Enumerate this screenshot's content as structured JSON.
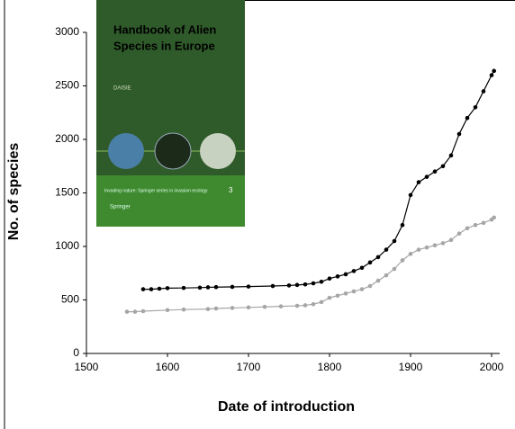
{
  "chart_data": {
    "type": "scatter",
    "xlabel": "Date of introduction",
    "ylabel": "No. of species",
    "xlim": [
      1500,
      2010
    ],
    "ylim": [
      0,
      3000
    ],
    "xticks": [
      1500,
      1600,
      1700,
      1800,
      1900,
      2000
    ],
    "yticks": [
      0,
      500,
      1000,
      1500,
      2000,
      2500,
      3000
    ],
    "grid": false,
    "series": [
      {
        "color": "#000000",
        "x": [
          1570,
          1580,
          1590,
          1600,
          1620,
          1640,
          1650,
          1660,
          1680,
          1700,
          1730,
          1750,
          1760,
          1770,
          1780,
          1790,
          1800,
          1810,
          1820,
          1830,
          1840,
          1850,
          1860,
          1870,
          1880,
          1890,
          1900,
          1910,
          1920,
          1930,
          1940,
          1950,
          1960,
          1970,
          1980,
          1990,
          2000,
          2003
        ],
        "values": [
          600,
          600,
          605,
          610,
          612,
          615,
          618,
          620,
          622,
          625,
          630,
          635,
          640,
          645,
          655,
          670,
          700,
          720,
          740,
          770,
          800,
          850,
          900,
          970,
          1050,
          1200,
          1480,
          1600,
          1650,
          1700,
          1750,
          1850,
          2050,
          2200,
          2300,
          2450,
          2600,
          2640
        ]
      },
      {
        "color": "#a6a6a6",
        "x": [
          1550,
          1560,
          1570,
          1600,
          1620,
          1650,
          1660,
          1680,
          1700,
          1720,
          1740,
          1760,
          1770,
          1780,
          1790,
          1800,
          1810,
          1820,
          1830,
          1840,
          1850,
          1860,
          1870,
          1880,
          1890,
          1900,
          1910,
          1920,
          1930,
          1940,
          1950,
          1960,
          1970,
          1980,
          1990,
          2000,
          2003
        ],
        "values": [
          390,
          390,
          395,
          405,
          410,
          415,
          420,
          425,
          430,
          435,
          440,
          445,
          450,
          460,
          480,
          520,
          540,
          560,
          580,
          600,
          630,
          680,
          730,
          790,
          870,
          930,
          970,
          990,
          1010,
          1030,
          1060,
          1120,
          1170,
          1200,
          1220,
          1250,
          1270
        ]
      }
    ],
    "inset": {
      "title_line1": "Handbook of Alien",
      "title_line2": "Species in Europe",
      "author": "DAISIE",
      "series_note": "Invading nature: Springer series in invasion ecology",
      "volume": "3",
      "publisher": "Springer"
    }
  }
}
